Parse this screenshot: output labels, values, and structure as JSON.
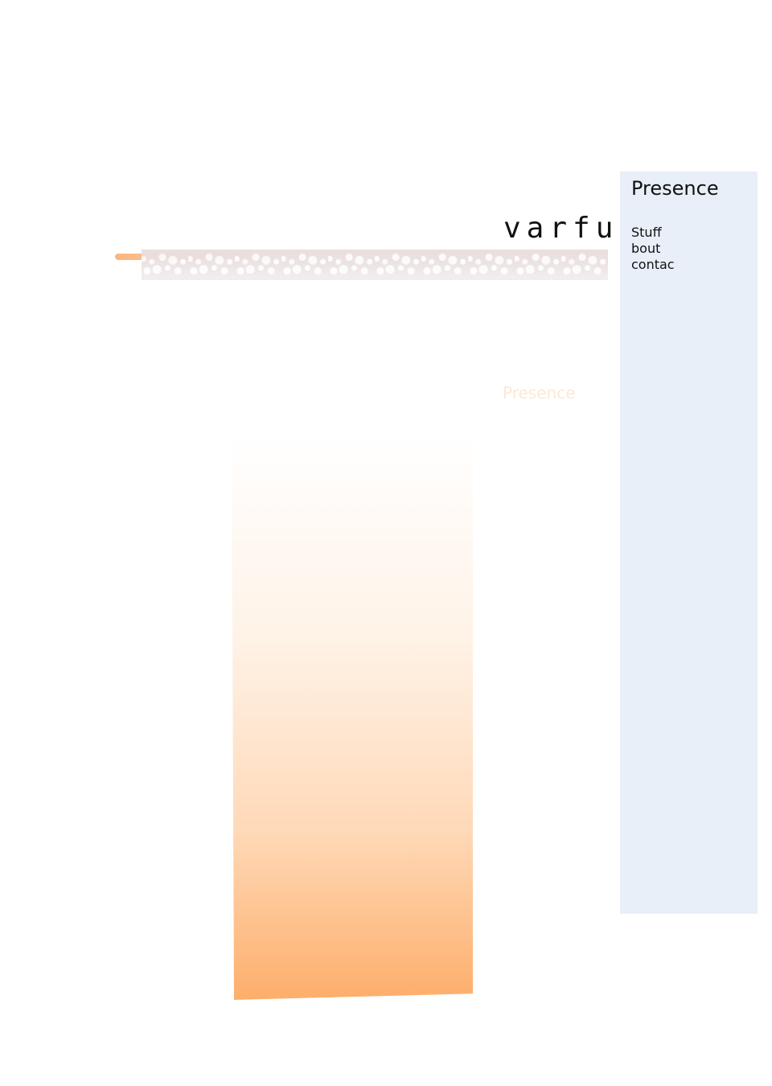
{
  "header": {
    "brand": "varfu"
  },
  "main": {
    "ghost_title": "Presence"
  },
  "sidebar": {
    "title": "Presence",
    "items": [
      {
        "label": "Stuff"
      },
      {
        "label": "bout"
      },
      {
        "label": "contac"
      }
    ]
  },
  "colors": {
    "sidebar_background": "#e8eff8",
    "accent_orange": "#fdae6b",
    "ghost_text": "#fde8d6"
  }
}
